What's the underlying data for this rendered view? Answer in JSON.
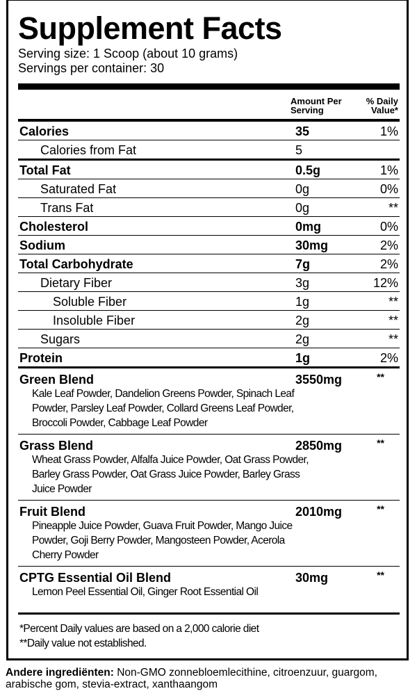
{
  "title": "Supplement Facts",
  "serving_size": "Serving size: 1 Scoop (about 10 grams)",
  "servings_per_container": "Servings per container: 30",
  "header": {
    "amount": "Amount Per Serving",
    "dv": "% Daily Value*"
  },
  "nutrients": [
    {
      "name": "Calories",
      "amount": "35",
      "dv": "1%",
      "bold": true,
      "indent": 0
    },
    {
      "name": "Calories from Fat",
      "amount": "5",
      "dv": "",
      "bold": false,
      "indent": 1
    },
    {
      "name": "Total Fat",
      "amount": "0.5g",
      "dv": "1%",
      "bold": true,
      "indent": 0
    },
    {
      "name": "Saturated Fat",
      "amount": "0g",
      "dv": "0%",
      "bold": false,
      "indent": 1
    },
    {
      "name": "Trans Fat",
      "amount": "0g",
      "dv": "**",
      "bold": false,
      "indent": 1
    },
    {
      "name": "Cholesterol",
      "amount": "0mg",
      "dv": "0%",
      "bold": true,
      "indent": 0
    },
    {
      "name": "Sodium",
      "amount": "30mg",
      "dv": "2%",
      "bold": true,
      "indent": 0
    },
    {
      "name": "Total Carbohydrate",
      "amount": "7g",
      "dv": "2%",
      "bold": true,
      "indent": 0
    },
    {
      "name": "Dietary Fiber",
      "amount": "3g",
      "dv": "12%",
      "bold": false,
      "indent": 1
    },
    {
      "name": "Soluble Fiber",
      "amount": "1g",
      "dv": "**",
      "bold": false,
      "indent": 2
    },
    {
      "name": "Insoluble Fiber",
      "amount": "2g",
      "dv": "**",
      "bold": false,
      "indent": 2
    },
    {
      "name": "Sugars",
      "amount": "2g",
      "dv": "**",
      "bold": false,
      "indent": 1
    },
    {
      "name": "Protein",
      "amount": "1g",
      "dv": "2%",
      "bold": true,
      "indent": 0
    }
  ],
  "blends": [
    {
      "name": "Green Blend",
      "amount": "3550mg",
      "dv": "**",
      "ingredients": "Kale Leaf Powder, Dandelion Greens Powder, Spinach Leaf Powder, Parsley Leaf Powder, Collard Greens Leaf Powder, Broccoli Powder, Cabbage Leaf Powder"
    },
    {
      "name": "Grass Blend",
      "amount": "2850mg",
      "dv": "**",
      "ingredients": "Wheat Grass Powder, Alfalfa Juice Powder, Oat Grass Powder, Barley Grass Powder, Oat Grass Juice Powder, Barley Grass Juice Powder"
    },
    {
      "name": "Fruit Blend",
      "amount": "2010mg",
      "dv": "**",
      "ingredients": "Pineapple Juice Powder, Guava Fruit Powder, Mango Juice Powder, Goji Berry Powder, Mangosteen Powder, Acerola Cherry Powder"
    },
    {
      "name": "CPTG Essential Oil Blend",
      "amount": "30mg",
      "dv": "**",
      "ingredients": "Lemon Peel Essential Oil, Ginger Root Essential Oil"
    }
  ],
  "footnotes": [
    "*Percent Daily values are based on a 2,000 calorie diet",
    "**Daily value not established."
  ],
  "other_ingredients": {
    "label": "Andere ingrediënten:",
    "text": " Non-GMO zonnebloemlecithine, citroenzuur, guargom, arabische gom, stevia-extract, xanthaangom"
  }
}
